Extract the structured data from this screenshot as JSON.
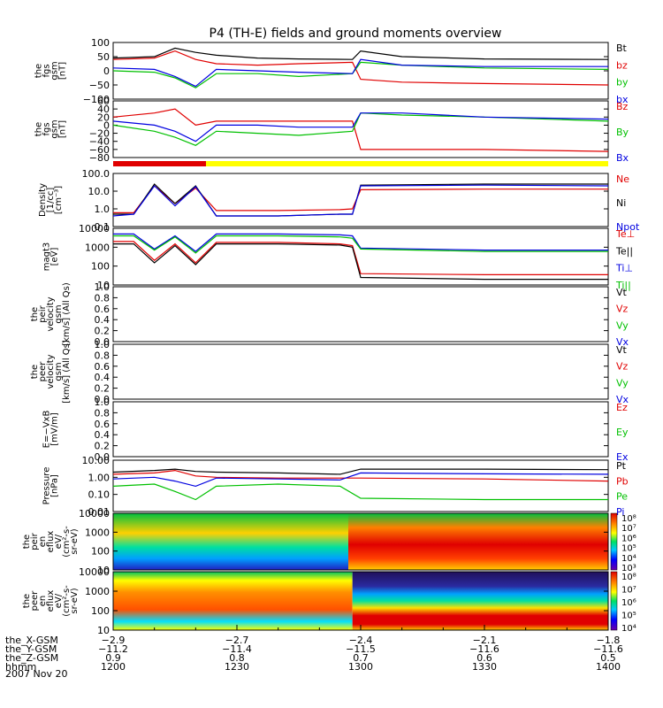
{
  "title": "P4 (TH-E) fields and ground moments overview",
  "date": "2007 Nov 20",
  "colors": {
    "black": "#000000",
    "red": "#e00000",
    "green": "#00c000",
    "blue": "#0000e0",
    "yellow_bar": "#ffff00",
    "red_bar": "#e00000"
  },
  "panels": [
    {
      "id": "fgs-gsm",
      "ylabel": [
        "the",
        "fgs",
        "gsm",
        "[nT]"
      ],
      "yticks": [
        "100",
        "50",
        "0",
        "−50",
        "−100"
      ],
      "legend": [
        {
          "text": "Bt",
          "color": "#000000"
        },
        {
          "text": "bz",
          "color": "#e00000"
        },
        {
          "text": "by",
          "color": "#00c000"
        },
        {
          "text": "bx",
          "color": "#0000e0"
        }
      ]
    },
    {
      "id": "fgs-gse",
      "ylabel": [
        "the",
        "fgs",
        "gsm",
        "[nT]"
      ],
      "yticks": [
        "60",
        "40",
        "20",
        "0",
        "−20",
        "−40",
        "−60",
        "−80"
      ],
      "legend": [
        {
          "text": "Bz",
          "color": "#e00000"
        },
        {
          "text": "By",
          "color": "#00c000"
        },
        {
          "text": "Bx",
          "color": "#0000e0"
        }
      ]
    },
    {
      "id": "density",
      "ylabel": [
        "Density",
        "[1/cc]",
        "[cm⁻³]"
      ],
      "yticks": [
        "100.0",
        "10.0",
        "1.0",
        "0.1"
      ],
      "legend": [
        {
          "text": "Ne",
          "color": "#e00000"
        },
        {
          "text": "Ni",
          "color": "#000000"
        },
        {
          "text": "Npot",
          "color": "#0000e0"
        }
      ]
    },
    {
      "id": "temperature",
      "ylabel": [
        "magt3",
        "[eV]"
      ],
      "yticks": [
        "10000",
        "1000",
        "100",
        "10"
      ],
      "legend": [
        {
          "text": "Te⊥",
          "color": "#e00000"
        },
        {
          "text": "Te||",
          "color": "#000000"
        },
        {
          "text": "Ti⊥",
          "color": "#0000e0"
        },
        {
          "text": "Ti||",
          "color": "#00c000"
        }
      ]
    },
    {
      "id": "peir-velocity",
      "ylabel": [
        "the",
        "peir",
        "velocity",
        "gsm",
        "[km/s] (All Qs)"
      ],
      "yticks": [
        "1.0",
        "0.8",
        "0.6",
        "0.4",
        "0.2",
        "0.0"
      ],
      "legend": [
        {
          "text": "Vt",
          "color": "#000000"
        },
        {
          "text": "Vz",
          "color": "#e00000"
        },
        {
          "text": "Vy",
          "color": "#00c000"
        },
        {
          "text": "Vx",
          "color": "#0000e0"
        }
      ]
    },
    {
      "id": "peer-velocity",
      "ylabel": [
        "the",
        "peer",
        "velocity",
        "gsm",
        "[km/s] (All Qs)"
      ],
      "yticks": [
        "1.0",
        "0.8",
        "0.6",
        "0.4",
        "0.2",
        "0.0"
      ],
      "legend": [
        {
          "text": "Vt",
          "color": "#000000"
        },
        {
          "text": "Vz",
          "color": "#e00000"
        },
        {
          "text": "Vy",
          "color": "#00c000"
        },
        {
          "text": "Vx",
          "color": "#0000e0"
        }
      ]
    },
    {
      "id": "efield",
      "ylabel": [
        "E=−VxB",
        "[mV/m]"
      ],
      "yticks": [
        "1.0",
        "0.8",
        "0.6",
        "0.4",
        "0.2",
        "0.0"
      ],
      "legend": [
        {
          "text": "Ez",
          "color": "#e00000"
        },
        {
          "text": "Ey",
          "color": "#00c000"
        },
        {
          "text": "Ex",
          "color": "#0000e0"
        }
      ]
    },
    {
      "id": "pressure",
      "ylabel": [
        "Pressure",
        "[nPa]"
      ],
      "yticks": [
        "10.00",
        "1.00",
        "0.10",
        "0.01"
      ],
      "legend": [
        {
          "text": "Pt",
          "color": "#000000"
        },
        {
          "text": "Pb",
          "color": "#e00000"
        },
        {
          "text": "Pe",
          "color": "#00c000"
        },
        {
          "text": "Pi",
          "color": "#0000e0"
        }
      ]
    },
    {
      "id": "peir-spec",
      "ylabel": [
        "the",
        "peir",
        "en",
        "eflux",
        "eV/",
        "(cm²-s-",
        "sr-eV)"
      ],
      "yticks": [
        "10000",
        "1000",
        "100",
        "10"
      ],
      "colorbar": [
        "10⁸",
        "10⁷",
        "10⁶",
        "10⁵",
        "10⁴",
        "10³"
      ]
    },
    {
      "id": "peer-spec",
      "ylabel": [
        "the",
        "peer",
        "en",
        "eflux",
        "eV/",
        "(cm²-s-",
        "sr-eV)"
      ],
      "yticks": [
        "10000",
        "1000",
        "100",
        "10"
      ],
      "colorbar": [
        "10⁸",
        "10⁷",
        "10⁶",
        "10⁵",
        "10⁴"
      ]
    }
  ],
  "xaxis": {
    "rows": [
      {
        "label": "the_X-GSM",
        "values": [
          "−2.9",
          "−2.7",
          "−2.4",
          "−2.1",
          "−1.8"
        ]
      },
      {
        "label": "the_Y-GSM",
        "values": [
          "−11.2",
          "−11.4",
          "−11.5",
          "−11.6",
          "−11.6"
        ]
      },
      {
        "label": "the_Z-GSM",
        "values": [
          "0.9",
          "0.8",
          "0.7",
          "0.6",
          "0.5"
        ]
      },
      {
        "label": "hhmm",
        "values": [
          "1200",
          "1230",
          "1300",
          "1330",
          "1400"
        ]
      }
    ]
  },
  "chart_data": {
    "type": "line",
    "title": "P4 (TH-E) fields and ground moments overview",
    "x_unit": "hhmm",
    "x_range": [
      "1200",
      "1400"
    ],
    "x_ticks": [
      "1200",
      "1230",
      "1300",
      "1330",
      "1400"
    ],
    "panels": [
      {
        "name": "fgs gsm [nT]",
        "ylim": [
          -100,
          100
        ],
        "series": [
          {
            "name": "Bt",
            "x": [
              1200,
              1210,
              1215,
              1220,
              1225,
              1235,
              1245,
              1258,
              1300,
              1310,
              1330,
              1400
            ],
            "values": [
              45,
              50,
              80,
              65,
              55,
              45,
              42,
              40,
              70,
              50,
              42,
              40
            ]
          },
          {
            "name": "bz",
            "x": [
              1200,
              1210,
              1215,
              1220,
              1225,
              1235,
              1245,
              1258,
              1300,
              1310,
              1330,
              1400
            ],
            "values": [
              40,
              45,
              70,
              40,
              25,
              20,
              25,
              30,
              -30,
              -40,
              -45,
              -50
            ]
          },
          {
            "name": "by",
            "x": [
              1200,
              1210,
              1215,
              1220,
              1225,
              1235,
              1245,
              1258,
              1300,
              1310,
              1330,
              1400
            ],
            "values": [
              0,
              -5,
              -25,
              -60,
              -10,
              -10,
              -20,
              -10,
              30,
              20,
              10,
              5
            ]
          },
          {
            "name": "bx",
            "x": [
              1200,
              1210,
              1215,
              1220,
              1225,
              1235,
              1245,
              1258,
              1300,
              1310,
              1330,
              1400
            ],
            "values": [
              10,
              5,
              -20,
              -55,
              5,
              0,
              -5,
              -10,
              40,
              20,
              15,
              15
            ]
          }
        ]
      },
      {
        "name": "fgs gsm [nT] (second)",
        "ylim": [
          -80,
          60
        ],
        "series": [
          {
            "name": "Bz",
            "x": [
              1200,
              1210,
              1215,
              1220,
              1225,
              1235,
              1245,
              1258,
              1300,
              1310,
              1330,
              1400
            ],
            "values": [
              20,
              30,
              40,
              0,
              10,
              10,
              10,
              10,
              -60,
              -60,
              -60,
              -65
            ]
          },
          {
            "name": "By",
            "x": [
              1200,
              1210,
              1215,
              1220,
              1225,
              1235,
              1245,
              1258,
              1300,
              1310,
              1330,
              1400
            ],
            "values": [
              0,
              -15,
              -30,
              -50,
              -15,
              -20,
              -25,
              -15,
              30,
              25,
              20,
              10
            ]
          },
          {
            "name": "Bx",
            "x": [
              1200,
              1210,
              1215,
              1220,
              1225,
              1235,
              1245,
              1258,
              1300,
              1310,
              1330,
              1400
            ],
            "values": [
              10,
              0,
              -15,
              -40,
              0,
              0,
              -5,
              -5,
              30,
              30,
              20,
              15
            ]
          }
        ]
      },
      {
        "name": "Density [1/cc]",
        "ylim": [
          0.1,
          100
        ],
        "scale": "log",
        "series": [
          {
            "name": "Ne",
            "x": [
              1200,
              1205,
              1210,
              1215,
              1220,
              1225,
              1240,
              1255,
              1258,
              1300,
              1330,
              1400
            ],
            "values": [
              0.6,
              0.6,
              20,
              2,
              15,
              0.8,
              0.8,
              0.9,
              1,
              12,
              13,
              13
            ]
          },
          {
            "name": "Ni",
            "x": [
              1200,
              1205,
              1210,
              1215,
              1220,
              1225,
              1240,
              1255,
              1258,
              1300,
              1330,
              1400
            ],
            "values": [
              0.5,
              0.5,
              25,
              2,
              20,
              0.4,
              0.4,
              0.5,
              0.5,
              22,
              25,
              25
            ]
          },
          {
            "name": "Npot",
            "x": [
              1200,
              1205,
              1210,
              1215,
              1220,
              1225,
              1240,
              1255,
              1258,
              1300,
              1330,
              1400
            ],
            "values": [
              0.4,
              0.5,
              20,
              1.5,
              18,
              0.4,
              0.4,
              0.5,
              0.5,
              20,
              22,
              20
            ]
          }
        ]
      },
      {
        "name": "magt3 [eV]",
        "ylim": [
          10,
          10000
        ],
        "scale": "log",
        "series": [
          {
            "name": "Te⊥",
            "x": [
              1200,
              1205,
              1210,
              1215,
              1220,
              1225,
              1240,
              1255,
              1258,
              1300,
              1330,
              1400
            ],
            "values": [
              2000,
              2000,
              200,
              1500,
              150,
              1800,
              1800,
              1500,
              1200,
              40,
              35,
              35
            ]
          },
          {
            "name": "Te||",
            "x": [
              1200,
              1205,
              1210,
              1215,
              1220,
              1225,
              1240,
              1255,
              1258,
              1300,
              1330,
              1400
            ],
            "values": [
              1500,
              1500,
              150,
              1200,
              120,
              1500,
              1500,
              1300,
              1000,
              25,
              20,
              20
            ]
          },
          {
            "name": "Ti⊥",
            "x": [
              1200,
              1205,
              1210,
              1215,
              1220,
              1225,
              1240,
              1255,
              1258,
              1300,
              1330,
              1400
            ],
            "values": [
              5000,
              5000,
              800,
              4000,
              600,
              5000,
              5000,
              4500,
              4000,
              900,
              700,
              700
            ]
          },
          {
            "name": "Ti||",
            "x": [
              1200,
              1205,
              1210,
              1215,
              1220,
              1225,
              1240,
              1255,
              1258,
              1300,
              1330,
              1400
            ],
            "values": [
              4000,
              4000,
              700,
              3500,
              500,
              4000,
              4000,
              3500,
              3000,
              800,
              600,
              600
            ]
          }
        ]
      },
      {
        "name": "peir velocity gsm [km/s]",
        "ylim": [
          0,
          1
        ],
        "series": []
      },
      {
        "name": "peer velocity gsm [km/s]",
        "ylim": [
          0,
          1
        ],
        "series": []
      },
      {
        "name": "E=-VxB [mV/m]",
        "ylim": [
          0,
          1
        ],
        "series": []
      },
      {
        "name": "Pressure [nPa]",
        "ylim": [
          0.01,
          10
        ],
        "scale": "log",
        "series": [
          {
            "name": "Pt",
            "x": [
              1200,
              1210,
              1215,
              1220,
              1225,
              1240,
              1255,
              1300,
              1330,
              1400
            ],
            "values": [
              2,
              2.5,
              3,
              2.2,
              2,
              1.8,
              1.5,
              3,
              3,
              2.8
            ]
          },
          {
            "name": "Pb",
            "x": [
              1200,
              1210,
              1215,
              1220,
              1225,
              1240,
              1255,
              1300,
              1330,
              1400
            ],
            "values": [
              1.5,
              1.8,
              2.5,
              1.2,
              1,
              0.9,
              0.9,
              0.9,
              0.8,
              0.6
            ]
          },
          {
            "name": "Pe",
            "x": [
              1200,
              1210,
              1215,
              1220,
              1225,
              1240,
              1255,
              1300,
              1330,
              1400
            ],
            "values": [
              0.3,
              0.4,
              0.15,
              0.05,
              0.3,
              0.4,
              0.3,
              0.06,
              0.05,
              0.05
            ]
          },
          {
            "name": "Pi",
            "x": [
              1200,
              1210,
              1215,
              1220,
              1225,
              1240,
              1255,
              1300,
              1330,
              1400
            ],
            "values": [
              0.8,
              1,
              0.6,
              0.3,
              0.9,
              0.8,
              0.7,
              1.8,
              1.6,
              1.5
            ]
          }
        ]
      }
    ]
  }
}
